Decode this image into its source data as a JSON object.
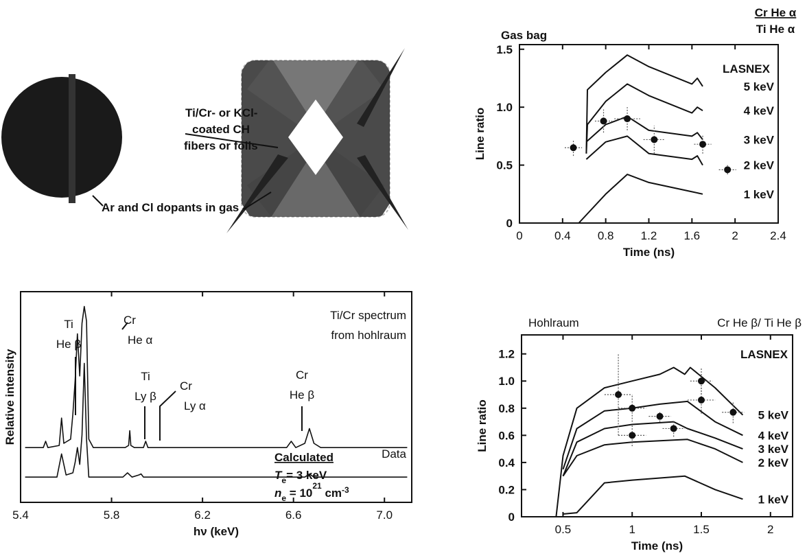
{
  "diagram": {
    "fiber_label": [
      "Ti/Cr- or KCl-",
      "coated CH",
      "fibers or foils"
    ],
    "gas_label": "Ar and Cl dopants in gas"
  },
  "chart_data": [
    {
      "type": "line",
      "title": "Gas bag",
      "ratio": {
        "numerator": "Cr He α",
        "denominator": "Ti He α"
      },
      "annotation": "LASNEX",
      "xlabel": "Time (ns)",
      "ylabel": "Line ratio",
      "xlim": [
        0,
        2.4
      ],
      "xticks": [
        0,
        0.4,
        0.8,
        1.2,
        1.6,
        2,
        2.4
      ],
      "ylim": [
        0,
        1.54
      ],
      "yticks": [
        0,
        0.5,
        {
          "value": 1,
          "label": "1.0"
        },
        1.5
      ],
      "series": [
        {
          "name": "5 keV",
          "color": "#111",
          "x": [
            0.62,
            0.63,
            0.8,
            1.0,
            1.2,
            1.6,
            1.65,
            1.7
          ],
          "values": [
            0.6,
            1.15,
            1.3,
            1.45,
            1.35,
            1.2,
            1.25,
            1.18
          ]
        },
        {
          "name": "4 keV",
          "color": "#111",
          "x": [
            0.62,
            0.63,
            0.8,
            1.0,
            1.2,
            1.6,
            1.65,
            1.7
          ],
          "values": [
            0.6,
            0.85,
            1.05,
            1.2,
            1.1,
            0.95,
            1.0,
            0.97
          ]
        },
        {
          "name": "3 keV",
          "color": "#111",
          "x": [
            0.62,
            0.8,
            1.0,
            1.2,
            1.6,
            1.65,
            1.7
          ],
          "values": [
            0.7,
            0.85,
            0.92,
            0.8,
            0.75,
            0.78,
            0.72
          ]
        },
        {
          "name": "2 keV",
          "color": "#111",
          "x": [
            0.62,
            0.8,
            1.0,
            1.2,
            1.6,
            1.65,
            1.7
          ],
          "values": [
            0.55,
            0.7,
            0.75,
            0.6,
            0.55,
            0.58,
            0.5
          ]
        },
        {
          "name": "1 keV",
          "color": "#111",
          "x": [
            0.55,
            0.8,
            1.0,
            1.2,
            1.6,
            1.7
          ],
          "values": [
            0,
            0.25,
            0.42,
            0.35,
            0.27,
            0.25
          ]
        }
      ],
      "points": {
        "color": "#111",
        "x": [
          0.5,
          0.78,
          1.0,
          1.25,
          1.7,
          1.93
        ],
        "values": [
          0.65,
          0.88,
          0.9,
          0.72,
          0.68,
          0.46
        ],
        "xerr": [
          0.08,
          0.08,
          0.12,
          0.1,
          0.08,
          0.08
        ],
        "yerr": [
          0.07,
          0.1,
          0.1,
          0.12,
          0.08,
          0.04
        ]
      }
    },
    {
      "type": "line",
      "xlabel": "hν (keV)",
      "ylabel": "Relative intensity",
      "xlim": [
        5.4,
        7.12
      ],
      "xticks": [
        5.4,
        5.8,
        6.2,
        6.6,
        {
          "value": 7,
          "label": "7.0"
        }
      ],
      "ylim": [
        0,
        10
      ],
      "annotations": [
        [
          "Ti",
          "He β"
        ],
        [
          "Cr",
          "He α"
        ],
        [
          "Ti",
          "Ly β"
        ],
        [
          "Cr",
          "Ly α"
        ],
        [
          "Cr",
          "He β"
        ],
        [
          "Ti/Cr spectrum",
          "from hohlraum"
        ]
      ],
      "conditions": [
        {
          "symbol": "T",
          "subscript": "e",
          "text": "= 3 keV"
        },
        {
          "symbol": "n",
          "subscript": "e",
          "text": " = 10",
          "superscript": "21",
          "unit": " cm",
          "unit_superscript": "-3"
        }
      ],
      "series": [
        {
          "name": "Data",
          "color": "#111",
          "x": [
            5.42,
            5.5,
            5.51,
            5.52,
            5.57,
            5.58,
            5.59,
            5.62,
            5.63,
            5.64,
            5.65,
            5.66,
            5.67,
            5.68,
            5.69,
            5.7,
            5.72,
            5.86,
            5.875,
            5.88,
            5.885,
            5.9,
            5.94,
            5.95,
            5.96,
            6.57,
            6.59,
            6.61,
            6.65,
            6.67,
            6.69,
            6.72,
            7.1
          ],
          "values": [
            2.6,
            2.6,
            2.9,
            2.6,
            2.7,
            4.0,
            2.8,
            3.0,
            4.2,
            5.8,
            8.0,
            6.0,
            8.5,
            9.3,
            8.6,
            3.0,
            2.6,
            2.6,
            2.7,
            3.4,
            2.7,
            2.6,
            2.6,
            2.9,
            2.6,
            2.6,
            2.9,
            2.6,
            2.8,
            3.5,
            2.8,
            2.6,
            2.6
          ]
        },
        {
          "name": "Calculated",
          "color": "#111",
          "x": [
            5.42,
            5.56,
            5.58,
            5.6,
            5.63,
            5.64,
            5.65,
            5.66,
            5.67,
            5.68,
            5.69,
            5.7,
            5.85,
            5.87,
            5.89,
            5.92,
            5.93,
            5.94,
            6.65,
            6.67,
            6.69,
            7.1
          ],
          "values": [
            1.2,
            1.2,
            2.3,
            1.3,
            1.4,
            1.9,
            2.6,
            1.8,
            3.2,
            6.6,
            3.0,
            1.2,
            1.2,
            1.4,
            1.2,
            1.3,
            1.35,
            1.2,
            1.2,
            1.35,
            1.2,
            1.2
          ]
        }
      ]
    },
    {
      "type": "line",
      "title": "Hohlraum",
      "ratio_label": "Cr He β/ Ti He β",
      "annotation": "LASNEX",
      "xlabel": "Time (ns)",
      "ylabel": "Line ratio",
      "xlim": [
        0.2,
        2.16
      ],
      "xticks": [
        0.5,
        1,
        1.5,
        2
      ],
      "ylim": [
        0,
        1.34
      ],
      "yticks": [
        0,
        0.2,
        0.4,
        0.6,
        0.8,
        {
          "value": 1,
          "label": "1.0"
        },
        1.2
      ],
      "series": [
        {
          "name": "5 keV",
          "color": "#111",
          "x": [
            0.45,
            0.5,
            0.6,
            0.8,
            1.0,
            1.2,
            1.3,
            1.38,
            1.42,
            1.6,
            1.8
          ],
          "values": [
            0,
            0.45,
            0.8,
            0.95,
            1.0,
            1.05,
            1.1,
            1.05,
            1.1,
            0.95,
            0.75
          ]
        },
        {
          "name": "4 keV",
          "color": "#111",
          "x": [
            0.5,
            0.6,
            0.8,
            1.0,
            1.2,
            1.4,
            1.6,
            1.8
          ],
          "values": [
            0.35,
            0.65,
            0.78,
            0.8,
            0.83,
            0.85,
            0.7,
            0.6
          ]
        },
        {
          "name": "3 keV",
          "color": "#111",
          "x": [
            0.5,
            0.6,
            0.8,
            1.0,
            1.3,
            1.4,
            1.6,
            1.8
          ],
          "values": [
            0.3,
            0.55,
            0.65,
            0.68,
            0.7,
            0.65,
            0.58,
            0.5
          ]
        },
        {
          "name": "2 keV",
          "color": "#111",
          "x": [
            0.5,
            0.6,
            0.8,
            1.0,
            1.4,
            1.6,
            1.8
          ],
          "values": [
            0.3,
            0.45,
            0.53,
            0.55,
            0.57,
            0.5,
            0.4
          ]
        },
        {
          "name": "1 keV",
          "color": "#111",
          "x": [
            0.5,
            0.6,
            0.8,
            1.0,
            1.38,
            1.6,
            1.8
          ],
          "values": [
            0.02,
            0.03,
            0.25,
            0.27,
            0.3,
            0.2,
            0.13
          ]
        }
      ],
      "points": {
        "color": "#111",
        "x": [
          0.9,
          1.0,
          1.0,
          1.2,
          1.3,
          1.5,
          1.5,
          1.73
        ],
        "values": [
          0.9,
          0.8,
          0.6,
          0.74,
          0.65,
          1.0,
          0.86,
          0.77
        ],
        "xerr": [
          0.1,
          0.1,
          0.1,
          0.08,
          0.08,
          0.08,
          0.1,
          0.08
        ],
        "yerr": [
          0.3,
          0.1,
          0.08,
          0.04,
          0.06,
          0.1,
          0.1,
          0.08
        ]
      }
    }
  ]
}
